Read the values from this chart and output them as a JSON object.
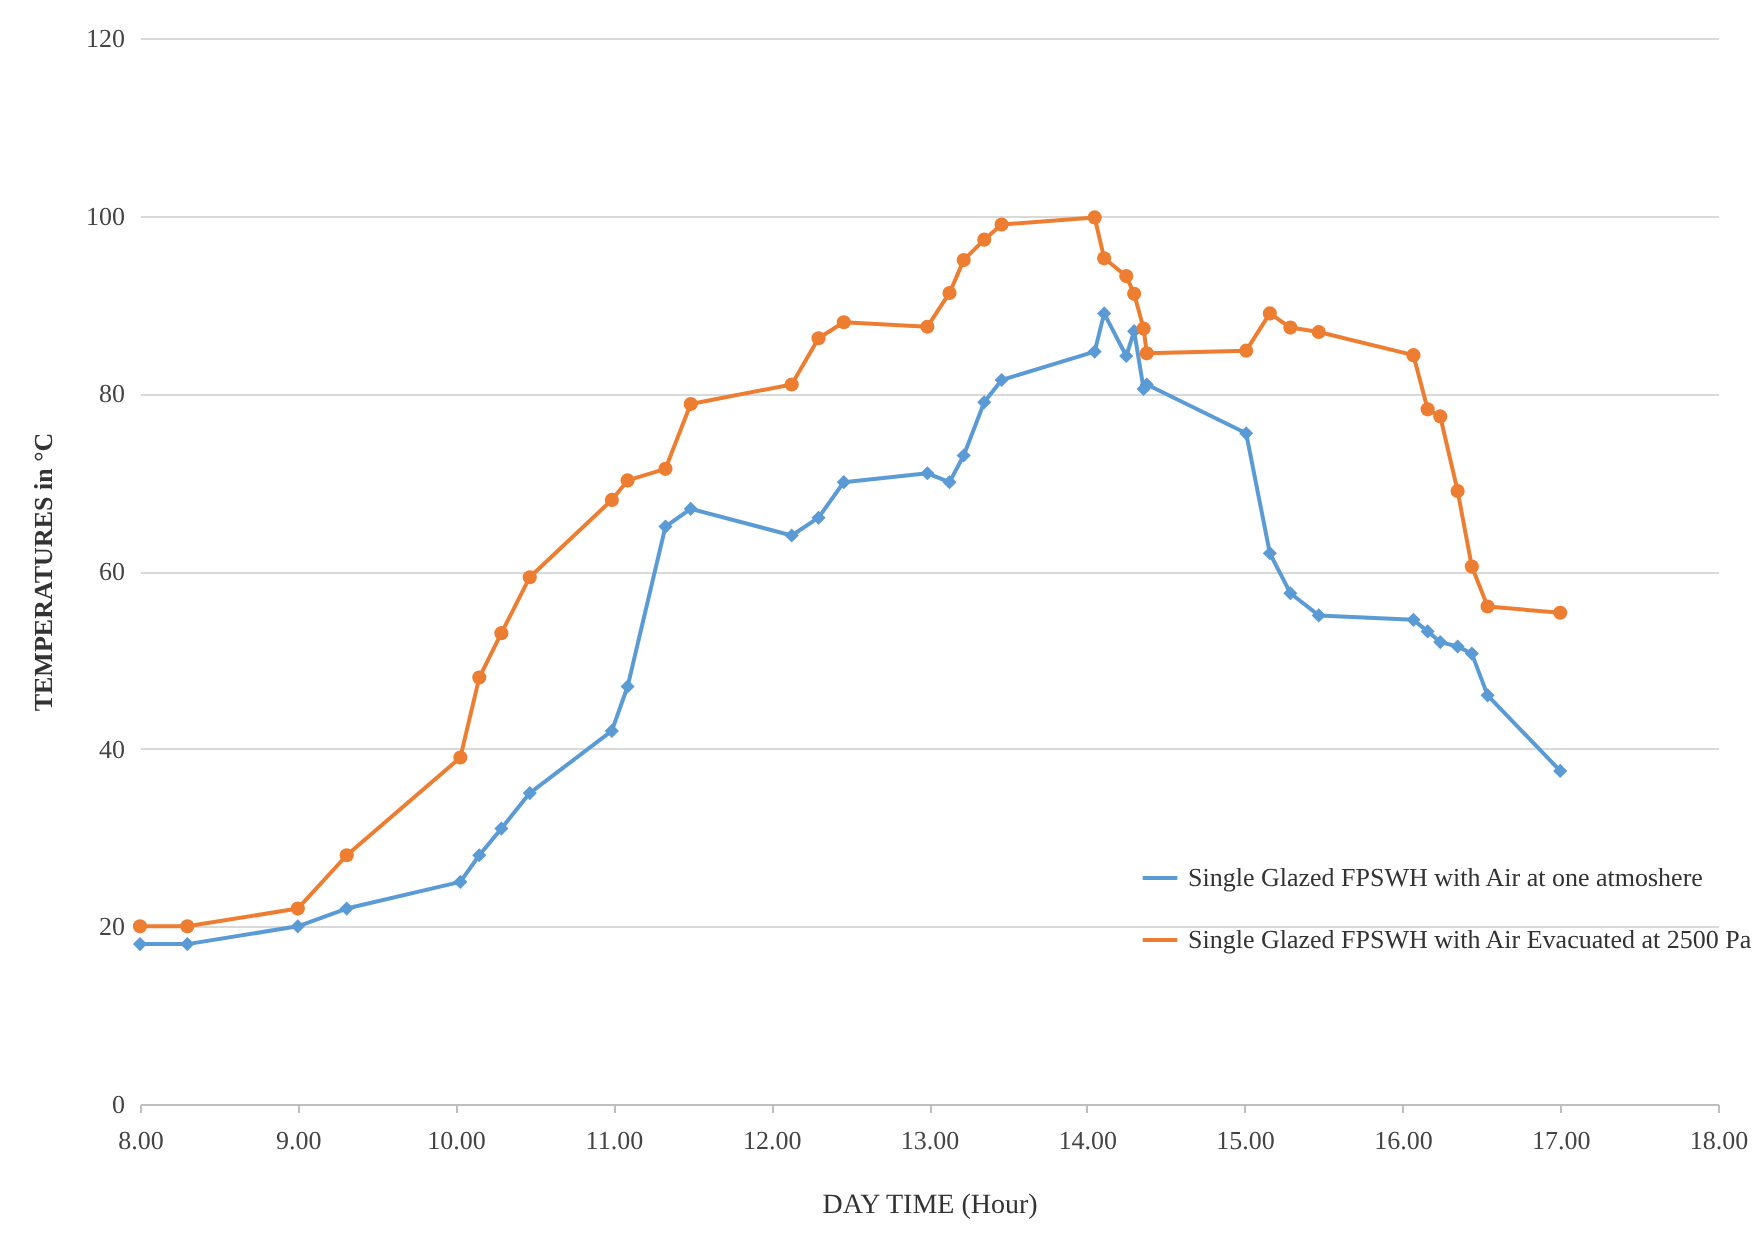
{
  "chart_data": {
    "type": "line",
    "xlabel": "DAY TIME (Hour)",
    "ylabel": "TEMPERATURES in °C",
    "xlim": [
      8,
      18
    ],
    "xticks": [
      {
        "value": 8,
        "label": "8.00"
      },
      {
        "value": 9,
        "label": "9.00"
      },
      {
        "value": 10,
        "label": "10.00"
      },
      {
        "value": 11,
        "label": "11.00"
      },
      {
        "value": 12,
        "label": "12.00"
      },
      {
        "value": 13,
        "label": "13.00"
      },
      {
        "value": 14,
        "label": "14.00"
      },
      {
        "value": 15,
        "label": "15.00"
      },
      {
        "value": 16,
        "label": "16.00"
      },
      {
        "value": 17,
        "label": "17.00"
      },
      {
        "value": 18,
        "label": "18.00"
      }
    ],
    "ylim": [
      0,
      120
    ],
    "yticks": [
      0,
      20,
      40,
      60,
      80,
      100,
      120
    ],
    "grid": "y",
    "legend": "right",
    "series": [
      {
        "name": "Single Glazed FPSWH with Air at one atmoshere",
        "color": "#5b9bd5",
        "marker": "diamond",
        "x": [
          8.0,
          8.3,
          9.0,
          9.31,
          10.03,
          10.15,
          10.29,
          10.47,
          10.99,
          11.09,
          11.33,
          11.49,
          12.13,
          12.3,
          12.46,
          12.99,
          13.13,
          13.22,
          13.35,
          13.46,
          14.05,
          14.11,
          14.25,
          14.3,
          14.36,
          14.38,
          15.01,
          15.16,
          15.29,
          15.47,
          16.07,
          16.16,
          16.24,
          16.35,
          16.44,
          16.54,
          17.0
        ],
        "values": [
          18,
          18,
          20,
          22,
          25,
          28,
          31,
          35,
          42,
          47,
          65,
          67,
          64,
          66,
          70,
          71,
          70,
          73,
          79,
          81.5,
          84.7,
          89,
          84.2,
          87,
          80.5,
          81,
          75.5,
          62,
          57.5,
          55,
          54.5,
          53.2,
          52,
          51.5,
          50.7,
          46,
          37.5
        ]
      },
      {
        "name": "Single Glazed FPSWH with Air Evacuated at 2500 Pa",
        "color": "#ed7d31",
        "marker": "circle",
        "x": [
          8.0,
          8.3,
          9.0,
          9.31,
          10.03,
          10.15,
          10.29,
          10.47,
          10.99,
          11.09,
          11.33,
          11.49,
          12.13,
          12.3,
          12.46,
          12.99,
          13.13,
          13.22,
          13.35,
          13.46,
          14.05,
          14.11,
          14.25,
          14.3,
          14.36,
          14.38,
          15.01,
          15.16,
          15.29,
          15.47,
          16.07,
          16.16,
          16.24,
          16.35,
          16.44,
          16.54,
          17.0
        ],
        "values": [
          20,
          20,
          22,
          28,
          39,
          48,
          53,
          59.3,
          68,
          70.2,
          71.5,
          78.8,
          81,
          86.2,
          88,
          87.5,
          91.3,
          95,
          97.3,
          99,
          99.8,
          95.2,
          93.2,
          91.2,
          87.3,
          84.5,
          84.8,
          89,
          87.4,
          86.9,
          84.3,
          78.2,
          77.4,
          69,
          60.5,
          56,
          55.3
        ]
      }
    ]
  }
}
